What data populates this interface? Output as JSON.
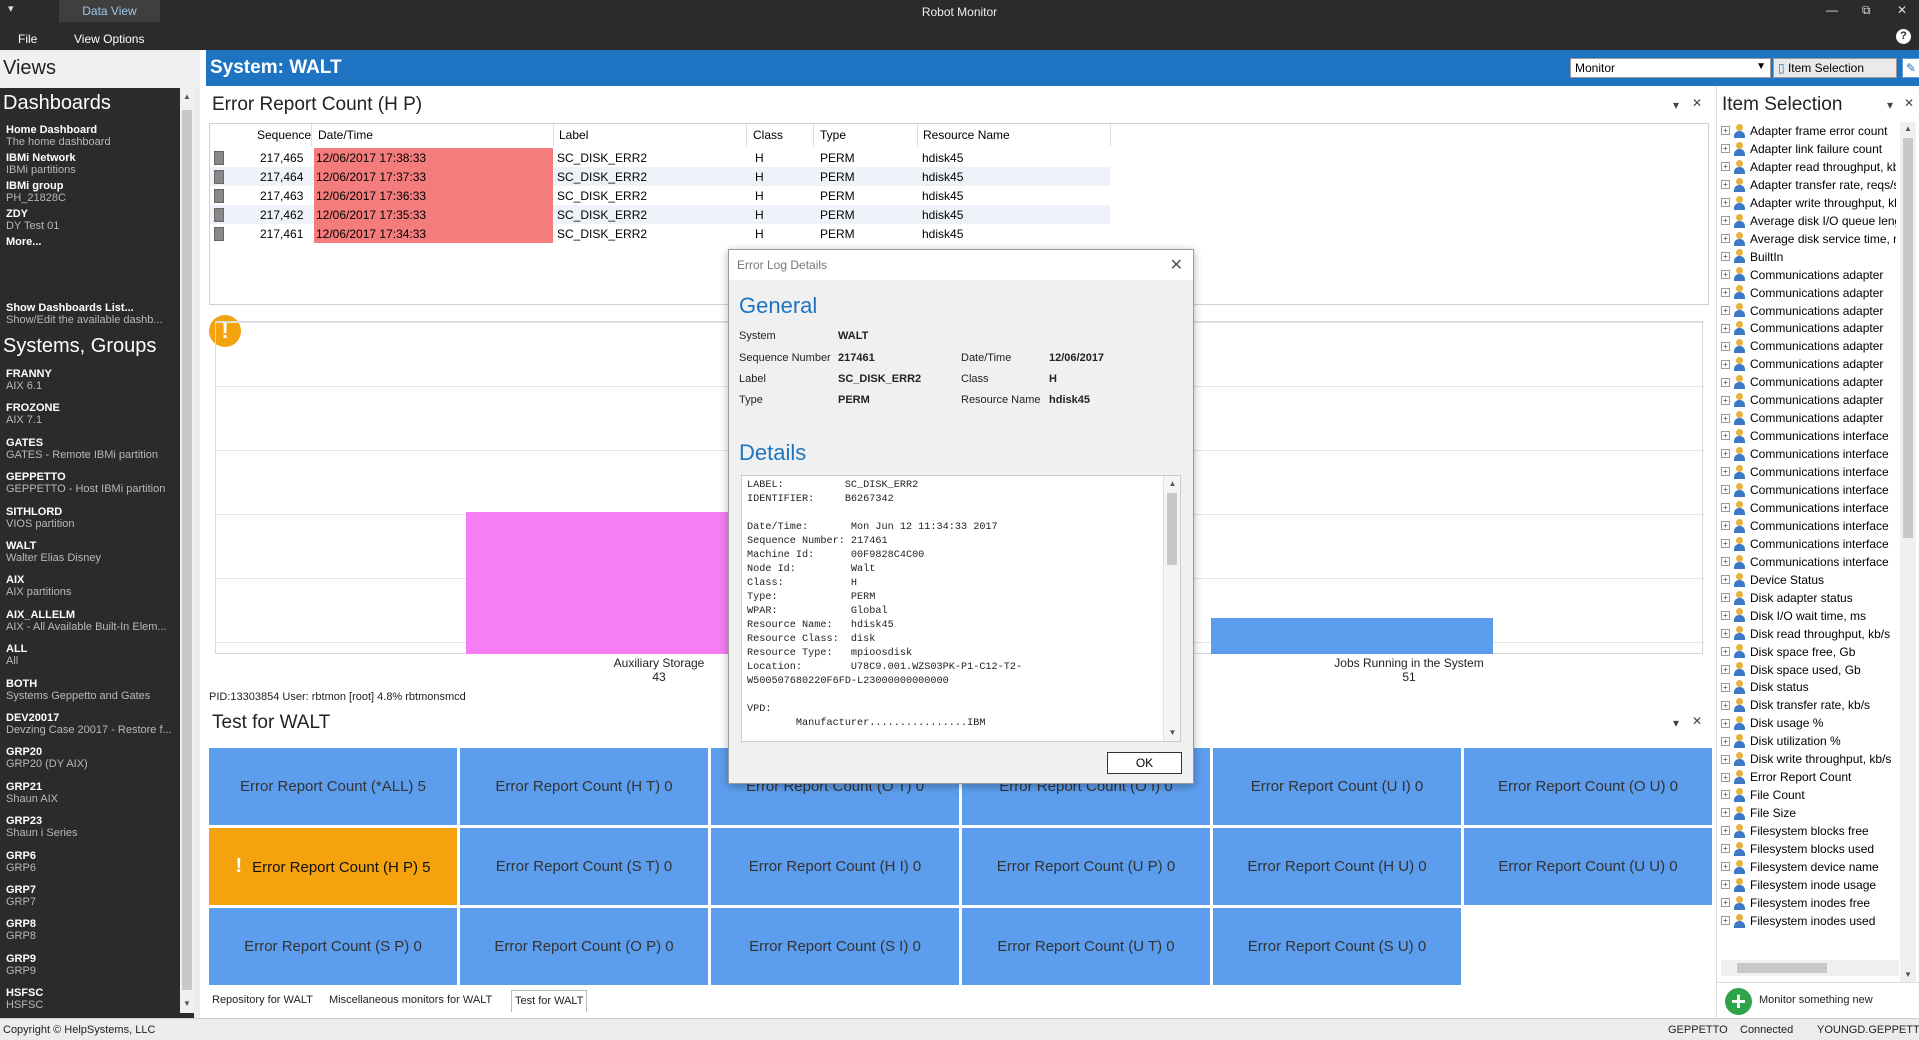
{
  "app": {
    "window_title": "Robot Monitor",
    "ribbon_tab": "Data View",
    "menu": {
      "file": "File",
      "view_options": "View Options"
    },
    "quick_access": "▾",
    "win_min": "—",
    "win_max": "⧉",
    "win_close": "✕",
    "help": "?"
  },
  "left": {
    "views_label": "Views",
    "dashboards_label": "Dashboards",
    "dashboards": [
      {
        "title": "Home Dashboard",
        "sub": "The home dashboard"
      },
      {
        "title": "IBMi Network",
        "sub": "IBMi partitions"
      },
      {
        "title": "IBMi group",
        "sub": "PH_21828C"
      },
      {
        "title": "ZDY",
        "sub": "DY Test 01"
      },
      {
        "title": "More...",
        "sub": ""
      }
    ],
    "show_list": {
      "title": "Show Dashboards List...",
      "sub": "Show/Edit the available dashb..."
    },
    "systems_label": "Systems, Groups",
    "systems": [
      {
        "title": "FRANNY",
        "sub": "AIX 6.1"
      },
      {
        "title": "FROZONE",
        "sub": "AIX 7.1"
      },
      {
        "title": "GATES",
        "sub": "GATES - Remote IBMi partition"
      },
      {
        "title": "GEPPETTO",
        "sub": "GEPPETTO - Host IBMi partition"
      },
      {
        "title": "SITHLORD",
        "sub": "VIOS partition"
      },
      {
        "title": "WALT",
        "sub": "Walter Elias Disney"
      },
      {
        "title": "AIX",
        "sub": "AIX partitions"
      },
      {
        "title": "AIX_ALLELM",
        "sub": "AIX - All Available Built-In Elem..."
      },
      {
        "title": "ALL",
        "sub": "All"
      },
      {
        "title": "BOTH",
        "sub": "Systems Geppetto and Gates"
      },
      {
        "title": "DEV20017",
        "sub": "Devzing Case 20017 - Restore f..."
      },
      {
        "title": "GRP20",
        "sub": "GRP20 (DY AIX)"
      },
      {
        "title": "GRP21",
        "sub": "Shaun AIX"
      },
      {
        "title": "GRP23",
        "sub": "Shaun i Series"
      },
      {
        "title": "GRP6",
        "sub": "GRP6"
      },
      {
        "title": "GRP7",
        "sub": "GRP7"
      },
      {
        "title": "GRP8",
        "sub": "GRP8"
      },
      {
        "title": "GRP9",
        "sub": "GRP9"
      },
      {
        "title": "HSFSC",
        "sub": "HSFSC"
      }
    ]
  },
  "system_bar": {
    "title": "System: WALT",
    "monitor_select": "Monitor",
    "item_selection_button": "Item Selection"
  },
  "error_panel": {
    "title": "Error Report Count (H P)",
    "columns": [
      "Sequence",
      "Date/Time",
      "Label",
      "Class",
      "Type",
      "Resource Name"
    ],
    "rows": [
      {
        "seq": "217,465",
        "dt": "12/06/2017 17:38:33",
        "label": "SC_DISK_ERR2",
        "class": "H",
        "type": "PERM",
        "res": "hdisk45"
      },
      {
        "seq": "217,464",
        "dt": "12/06/2017 17:37:33",
        "label": "SC_DISK_ERR2",
        "class": "H",
        "type": "PERM",
        "res": "hdisk45"
      },
      {
        "seq": "217,463",
        "dt": "12/06/2017 17:36:33",
        "label": "SC_DISK_ERR2",
        "class": "H",
        "type": "PERM",
        "res": "hdisk45"
      },
      {
        "seq": "217,462",
        "dt": "12/06/2017 17:35:33",
        "label": "SC_DISK_ERR2",
        "class": "H",
        "type": "PERM",
        "res": "hdisk45"
      },
      {
        "seq": "217,461",
        "dt": "12/06/2017 17:34:33",
        "label": "SC_DISK_ERR2",
        "class": "H",
        "type": "PERM",
        "res": "hdisk45"
      }
    ]
  },
  "chart_panel": {
    "warning_icon": "!",
    "status_line": "PID:13303854 User: rbtmon [root] 4.8% rbtmonsmcd",
    "bars": [
      {
        "label": "Auxiliary Storage",
        "value": "43",
        "color": "#f77df5"
      },
      {
        "label": "Jobs Running in the System",
        "value": "51",
        "color": "#5c9ded"
      }
    ]
  },
  "test_panel": {
    "title": "Test for WALT",
    "tiles": [
      "Error Report Count (*ALL) 5",
      "Error Report Count (H T) 0",
      "Error Report Count (O T) 0",
      "Error Report Count (O I) 0",
      "Error Report Count (U I) 0",
      "Error Report Count (O U) 0",
      "Error Report Count (H P) 5",
      "Error Report Count (S T) 0",
      "Error Report Count (H I) 0",
      "Error Report Count (U P) 0",
      "Error Report Count (H U) 0",
      "Error Report Count (U U) 0",
      "Error Report Count (S P) 0",
      "Error Report Count (O P) 0",
      "Error Report Count (S I) 0",
      "Error Report Count (U T) 0",
      "Error Report Count (S U) 0"
    ],
    "warn_tile_index": 6,
    "warn_color": "#f5a20f",
    "tile_color": "#5c9ded"
  },
  "bottom_tabs": [
    "Repository for WALT",
    "Miscellaneous monitors for WALT",
    "Test for WALT"
  ],
  "item_selection": {
    "title": "Item Selection",
    "items": [
      "Adapter frame error count",
      "Adapter link failure count",
      "Adapter read throughput, kb/s",
      "Adapter transfer rate, reqs/s",
      "Adapter write throughput, kb/s",
      "Average disk I/O queue length",
      "Average disk service time, ms",
      "BuiltIn",
      "Communications adapter",
      "Communications adapter",
      "Communications adapter",
      "Communications adapter",
      "Communications adapter",
      "Communications adapter",
      "Communications adapter",
      "Communications adapter",
      "Communications adapter",
      "Communications interface",
      "Communications interface",
      "Communications interface",
      "Communications interface",
      "Communications interface",
      "Communications interface",
      "Communications interface",
      "Communications interface",
      "Device Status",
      "Disk adapter status",
      "Disk I/O wait time, ms",
      "Disk read throughput, kb/s",
      "Disk space free, Gb",
      "Disk space used, Gb",
      "Disk status",
      "Disk transfer rate, kb/s",
      "Disk usage %",
      "Disk utilization %",
      "Disk write throughput, kb/s",
      "Error Report Count",
      "File Count",
      "File Size",
      "Filesystem blocks free",
      "Filesystem blocks used",
      "Filesystem device name",
      "Filesystem inode usage",
      "Filesystem inodes free",
      "Filesystem inodes used"
    ],
    "monitor_new": "Monitor something new"
  },
  "footer": {
    "copyright": "Copyright © HelpSystems, LLC",
    "server": "GEPPETTO",
    "status": "Connected",
    "user": "YOUNGD.GEPPETTO"
  },
  "dialog": {
    "title": "Error Log Details",
    "close": "✕",
    "general_heading": "General",
    "details_heading": "Details",
    "fields": {
      "system_label": "System",
      "system_value": "WALT",
      "seq_label": "Sequence Number",
      "seq_value": "217461",
      "datetime_label": "Date/Time",
      "datetime_value": "12/06/2017",
      "label_label": "Label",
      "label_value": "SC_DISK_ERR2",
      "class_label": "Class",
      "class_value": "H",
      "type_label": "Type",
      "type_value": "PERM",
      "res_label": "Resource Name",
      "res_value": "hdisk45"
    },
    "details_text": "LABEL:          SC_DISK_ERR2\nIDENTIFIER:     B6267342\n\nDate/Time:       Mon Jun 12 11:34:33 2017\nSequence Number: 217461\nMachine Id:      00F9828C4C00\nNode Id:         Walt\nClass:           H\nType:            PERM\nWPAR:            Global\nResource Name:   hdisk45\nResource Class:  disk\nResource Type:   mpioosdisk\nLocation:        U78C9.001.WZS03PK-P1-C12-T2-\nW500507680220F6FD-L23000000000000\n\nVPD:\n        Manufacturer................IBM",
    "ok": "OK"
  }
}
